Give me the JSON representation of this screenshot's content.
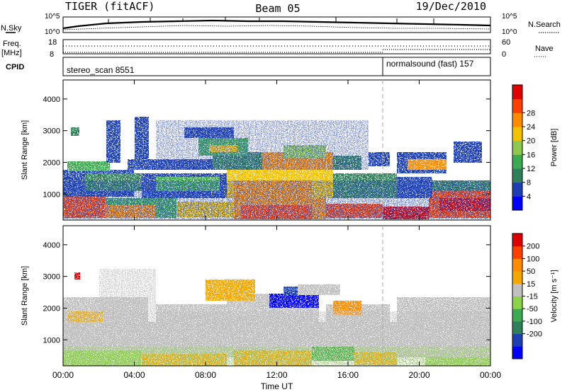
{
  "header": {
    "title": "TIGER (fitACF)",
    "beam": "Beam 05",
    "date": "19/Dec/2010"
  },
  "summary": {
    "nsky_label": "N.Sky",
    "nsearch_label": "N.Search",
    "freq_label": "Freq.",
    "freq_unit": "[MHz]",
    "nave_label": "Nave",
    "cpid_label": "CPID",
    "nsky_ticks": [
      "10^5",
      "10^0"
    ],
    "nsearch_ticks": [
      "10^5",
      "10^0"
    ],
    "freq_ticks": [
      "18",
      "8"
    ],
    "nave_ticks": [
      "60",
      "0"
    ],
    "cpid_segments": [
      {
        "label": "stereo_scan 8551",
        "start": "00:00",
        "end": "18:00"
      },
      {
        "label": "normalsound (fast) 157",
        "start": "18:00",
        "end": "24:00"
      }
    ]
  },
  "chart_data": [
    {
      "type": "heatmap",
      "title": "",
      "xlabel": "Time UT",
      "ylabel": "Slant Range [km]",
      "xticks": [
        "00:00",
        "04:00",
        "08:00",
        "12:00",
        "16:00",
        "20:00",
        "00:00"
      ],
      "xlim": [
        0,
        24
      ],
      "yticks": [
        "1000",
        "2000",
        "3000",
        "4000"
      ],
      "ylim": [
        180,
        4600
      ],
      "colorbar": {
        "label": "Power [dB]",
        "ticks": [
          "4",
          "8",
          "12",
          "16",
          "20",
          "24",
          "28"
        ],
        "colors": [
          "#0000ff",
          "#1e3fb4",
          "#2f7f5a",
          "#3caa50",
          "#8cc850",
          "#f2c200",
          "#ff8c00",
          "#ff4000",
          "#e00000"
        ]
      }
    },
    {
      "type": "heatmap",
      "title": "",
      "xlabel": "Time UT",
      "ylabel": "Slant Range [km]",
      "xticks": [
        "00:00",
        "04:00",
        "08:00",
        "12:00",
        "16:00",
        "20:00",
        "00:00"
      ],
      "xlim": [
        0,
        24
      ],
      "yticks": [
        "1000",
        "2000",
        "3000",
        "4000"
      ],
      "ylim": [
        180,
        4600
      ],
      "colorbar": {
        "label": "Velocity [m s⁻¹]",
        "ticks": [
          "200",
          "100",
          "50",
          "15",
          "-15",
          "-50",
          "-100",
          "-200"
        ],
        "colors": [
          "#0000ff",
          "#1e3fb4",
          "#2f7f5a",
          "#3caa50",
          "#8cd24a",
          "#c0c0c0",
          "#f2a800",
          "#ff8c00",
          "#ff4000",
          "#e00000"
        ]
      }
    }
  ]
}
